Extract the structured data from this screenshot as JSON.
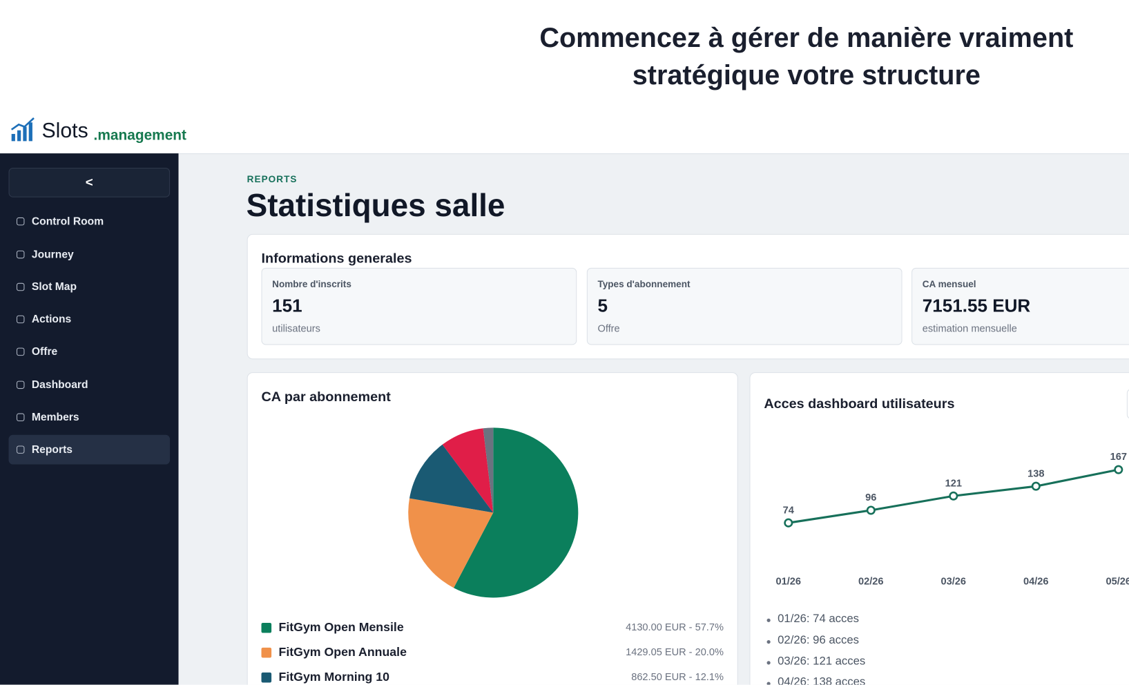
{
  "header": {
    "headline": [
      "Commencez à gérer de manière vraiment",
      "stratégique votre structure"
    ],
    "logo": {
      "name": "Slots",
      "suffix": ".management"
    }
  },
  "sidebar": {
    "toggle": "<",
    "nav": [
      {
        "label": "Control Room"
      },
      {
        "label": "Journey"
      },
      {
        "label": "Slot Map"
      },
      {
        "label": "Actions"
      },
      {
        "label": "Offre"
      },
      {
        "label": "Dashboard"
      },
      {
        "label": "Members"
      },
      {
        "label": "Reports",
        "active": true
      }
    ]
  },
  "page": {
    "eyebrow": "REPORTS",
    "title": "Statistiques salle"
  },
  "info": {
    "title": "Informations generales",
    "stats": [
      {
        "label": "Nombre d'inscrits",
        "value": "151",
        "unit": "utilisateurs"
      },
      {
        "label": "Types d'abonnement",
        "value": "5",
        "unit": "Offre"
      },
      {
        "label": "CA mensuel",
        "value": "7151.55 EUR",
        "unit": "estimation mensuelle"
      }
    ]
  },
  "chart_data": [
    {
      "type": "pie",
      "title": "CA par abonnement",
      "categories": [
        "FitGym Open Mensile",
        "FitGym Open Annuale",
        "FitGym Morning 10",
        null,
        null
      ],
      "values": [
        57.7,
        20.0,
        12.1,
        8.3,
        1.9
      ],
      "value_labels": [
        "4130.00 EUR - 57.7%",
        "1429.05 EUR - 20.0%",
        "862.50 EUR - 12.1%",
        null,
        null
      ],
      "colors": [
        "#0b7f5c",
        "#f0914a",
        "#1a5a73",
        "#e01e48",
        "#6b7280"
      ]
    },
    {
      "type": "line",
      "title": "Acces dashboard utilisateurs",
      "categories": [
        "01/26",
        "02/26",
        "03/26",
        "04/26",
        "05/26"
      ],
      "values": [
        74,
        96,
        121,
        138,
        167
      ],
      "color": "#17705a",
      "ylim": [
        0,
        200
      ]
    }
  ],
  "access_summary": [
    "01/26: 74 acces",
    "02/26: 96 acces",
    "03/26: 121 acces",
    "04/26: 138 acces"
  ]
}
